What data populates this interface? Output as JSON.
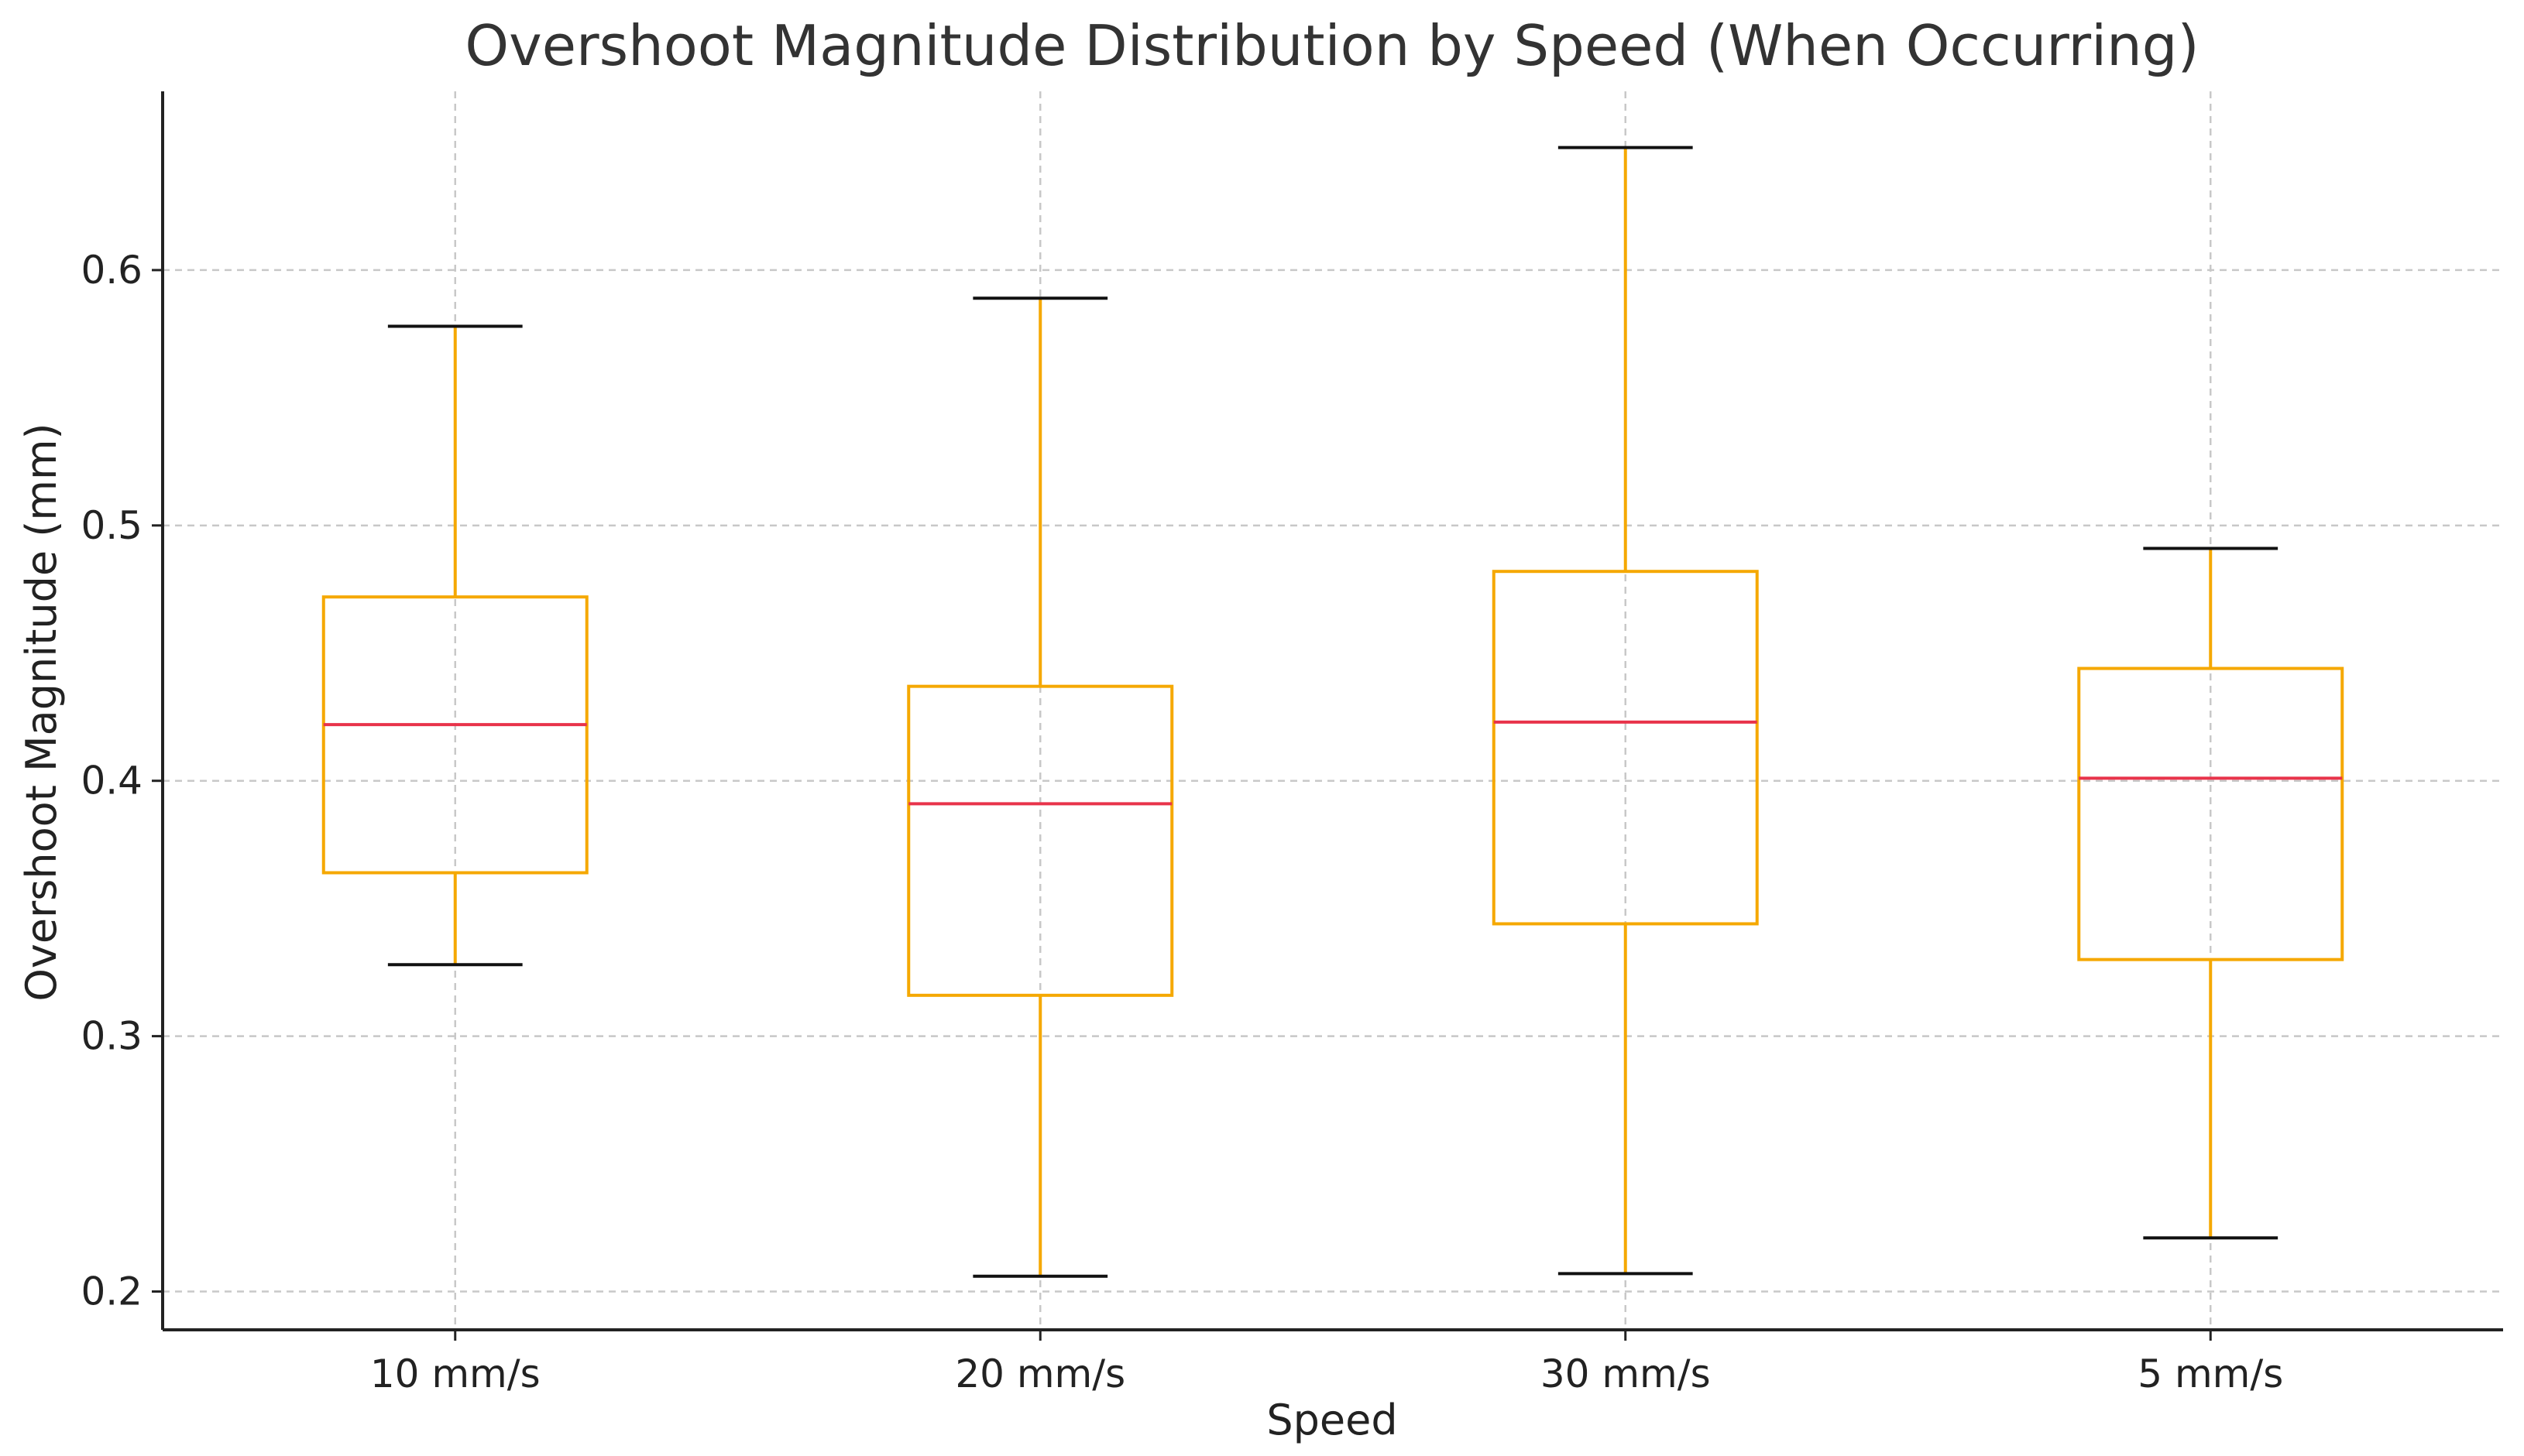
{
  "chart_data": {
    "type": "box",
    "title": "Overshoot Magnitude Distribution by Speed (When Occurring)",
    "xlabel": "Speed",
    "ylabel": "Overshoot Magnitude (mm)",
    "ylim": [
      0.185,
      0.67
    ],
    "yticks": [
      0.2,
      0.3,
      0.4,
      0.5,
      0.6
    ],
    "ytick_labels": [
      "0.2",
      "0.3",
      "0.4",
      "0.5",
      "0.6"
    ],
    "categories": [
      "10 mm/s",
      "20 mm/s",
      "30 mm/s",
      "5 mm/s"
    ],
    "boxes": [
      {
        "category": "10 mm/s",
        "whisker_low": 0.328,
        "q1": 0.364,
        "median": 0.422,
        "q3": 0.472,
        "whisker_high": 0.578
      },
      {
        "category": "20 mm/s",
        "whisker_low": 0.206,
        "q1": 0.316,
        "median": 0.391,
        "q3": 0.437,
        "whisker_high": 0.589
      },
      {
        "category": "30 mm/s",
        "whisker_low": 0.207,
        "q1": 0.344,
        "median": 0.423,
        "q3": 0.482,
        "whisker_high": 0.648
      },
      {
        "category": "5 mm/s",
        "whisker_low": 0.221,
        "q1": 0.33,
        "median": 0.401,
        "q3": 0.444,
        "whisker_high": 0.491
      }
    ],
    "grid": true,
    "colors": {
      "box": "#f5a800",
      "median": "#e8334a",
      "cap": "#111111"
    }
  }
}
